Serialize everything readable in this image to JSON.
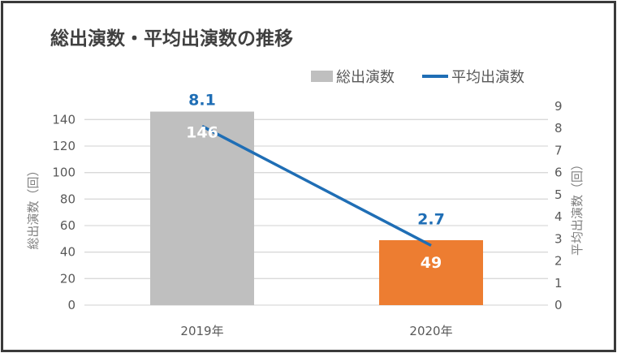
{
  "chart_data": {
    "type": "bar+line",
    "title": "総出演数・平均出演数の推移",
    "categories": [
      "2019年",
      "2020年"
    ],
    "series": [
      {
        "name": "総出演数",
        "type": "bar",
        "axis": "left",
        "values": [
          146,
          49
        ],
        "colors": [
          "#bfbfbf",
          "#ed7d31"
        ],
        "labels": [
          "146",
          "49"
        ],
        "label_color": "#ffffff"
      },
      {
        "name": "平均出演数",
        "type": "line",
        "axis": "right",
        "values": [
          8.1,
          2.7
        ],
        "color": "#1f6eb5",
        "labels": [
          "8.1",
          "2.7"
        ]
      }
    ],
    "ylabel": "総出演数（回）",
    "y2label": "平均出演数（回）",
    "ylim": [
      0,
      150
    ],
    "yticks": [
      "0",
      "20",
      "40",
      "60",
      "80",
      "100",
      "120",
      "140"
    ],
    "y2lim": [
      0,
      9
    ],
    "y2ticks": [
      "0",
      "1",
      "2",
      "3",
      "4",
      "5",
      "6",
      "7",
      "8",
      "9"
    ],
    "grid": true,
    "legend": "top-right"
  }
}
